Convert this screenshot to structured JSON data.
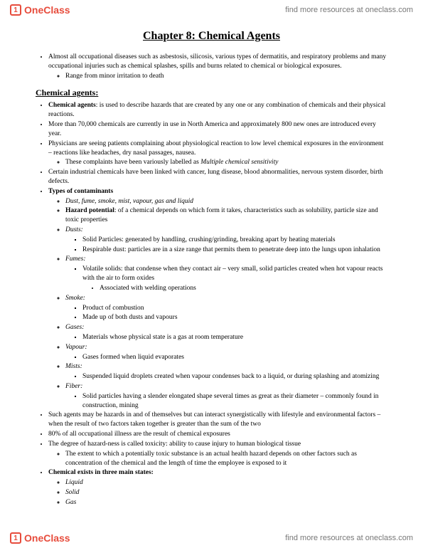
{
  "brand": {
    "logo_text": "OneClass",
    "tagline": "find more resources at oneclass.com"
  },
  "title": "Chapter 8: Chemical Agents",
  "intro": {
    "p1": "Almost all occupational diseases such as asbestosis, silicosis, various types of dermatitis, and respiratory problems and many occupational injuries such as chemical splashes, spills and burns related to chemical or biological exposures.",
    "p1a": "Range from minor irritation to death"
  },
  "section1_heading": "Chemical agents:",
  "s1": {
    "b1_term": "Chemical agents",
    "b1_text": ": is used to describe hazards that are created by any one or any combination of chemicals and their physical reactions.",
    "b2": "More than 70,000 chemicals are currently in use in North America and approximately 800 new ones are introduced every year.",
    "b3": "Physicians are seeing patients complaining about physiological reaction to low level chemical exposures in the environment – reactions like headaches, dry nasal passages, nausea.",
    "b3a_pre": "These complaints have been variously labelled as ",
    "b3a_term": "Multiple chemical sensitivity",
    "b4": "Certain industrial chemicals have been linked with cancer, lung disease, blood abnormalities, nervous system disorder, birth defects.",
    "types_heading": "Types of contaminants",
    "types_list": "Dust, fume, smoke, mist, vapour, gas and liquid",
    "hazpot_term": "Hazard potential",
    "hazpot_text": ": of a chemical depends on which form it takes, characteristics such as solubility, particle size and toxic properties",
    "dusts_h": "Dusts:",
    "dusts_1": "Solid Particles: generated by handling, crushing/grinding, breaking apart by heating materials",
    "dusts_2": "Respirable dust: particles are in a size range that permits them to penetrate deep into the lungs upon inhalation",
    "fumes_h": "Fumes:",
    "fumes_1": "Volatile solids: that condense when they contact air – very small, solid particles created when hot vapour reacts with the air to form oxides",
    "fumes_1a": "Associated with welding operations",
    "smoke_h": "Smoke:",
    "smoke_1": "Product of combustion",
    "smoke_2": "Made up of both dusts and vapours",
    "gases_h": "Gases:",
    "gases_1": "Materials whose physical state is a gas at room temperature",
    "vapour_h": "Vapour:",
    "vapour_1": "Gases formed when liquid evaporates",
    "mists_h": "Mists:",
    "mists_1": "Suspended liquid droplets created when vapour condenses back to a liquid, or during splashing and atomizing",
    "fiber_h": "Fiber:",
    "fiber_1": "Solid particles having a slender elongated shape several times as great as their diameter – commonly found in construction, mining",
    "b5": "Such agents may be hazards in and of themselves but can interact synergistically with lifestyle and environmental factors – when the result of two factors taken together is greater than the sum of the two",
    "b6": "80% of all occupational illness are the result of chemical exposures",
    "b7": "The degree of hazard-ness is called toxicity: ability to cause injury to human biological tissue",
    "b7a": "The extent to which a potentially toxic substance is an actual health hazard depends on other factors such as concentration of the chemical and the length of time the employee is exposed to it",
    "states_h": "Chemical exists in three main states:",
    "states_1": "Liquid",
    "states_2": "Solid",
    "states_3": "Gas"
  }
}
